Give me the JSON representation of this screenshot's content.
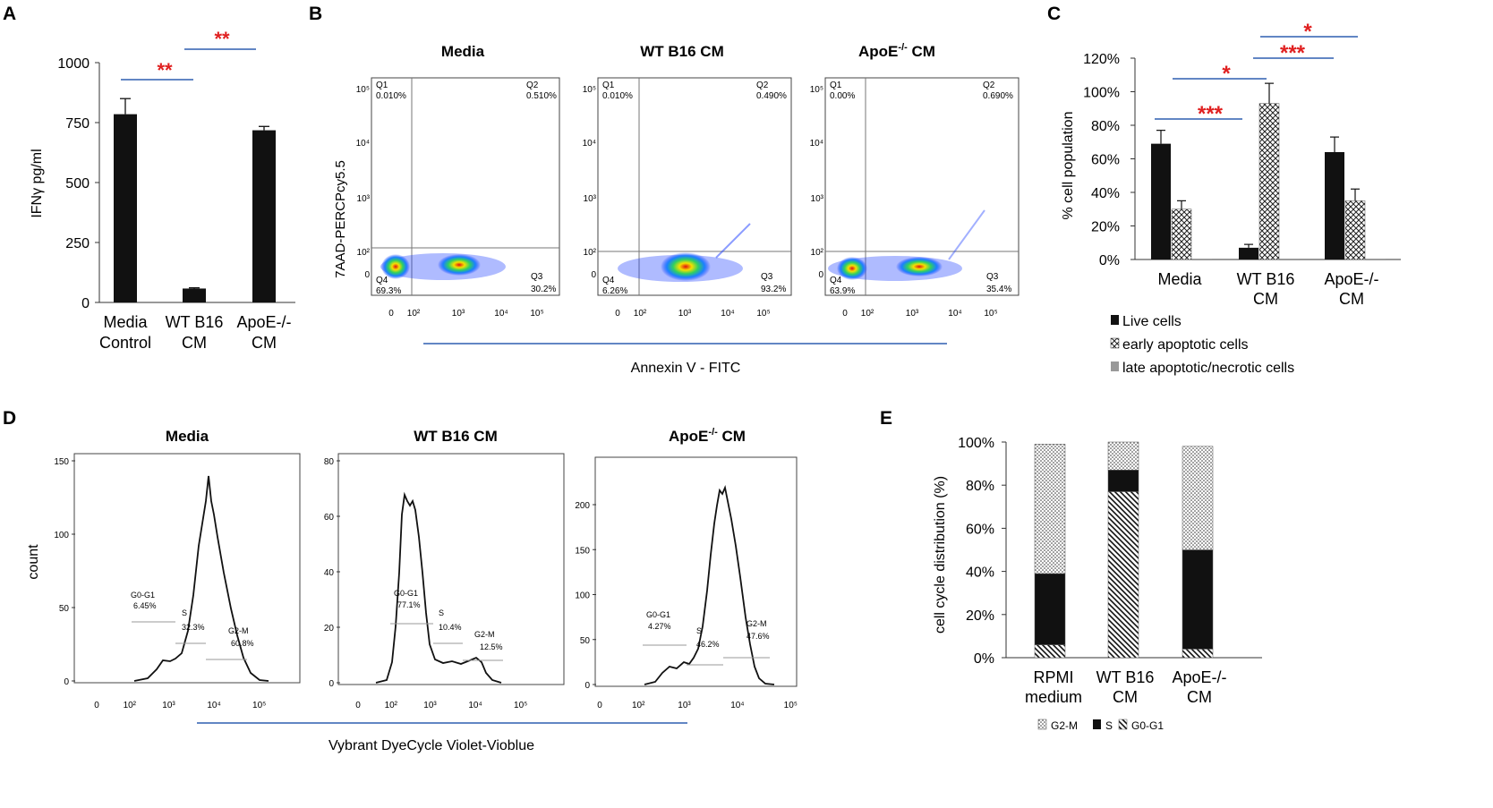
{
  "panels": {
    "A": {
      "label": "A",
      "ylabel": "IFNγ pg/ml",
      "yticks": [
        0,
        250,
        500,
        750,
        1000
      ],
      "ylim": [
        0,
        1000
      ],
      "categories": [
        {
          "line1": "Media",
          "line2": "Control"
        },
        {
          "line1": "WT B16",
          "line2": "CM"
        },
        {
          "line1": "ApoE-/-",
          "line2": "CM"
        }
      ],
      "sig": [
        "**",
        "**"
      ]
    },
    "B": {
      "label": "B",
      "ylabel": "7AAD-PERCPcy5.5",
      "xlabel": "Annexin V - FITC",
      "plots": [
        {
          "title": "Media",
          "q1": "Q1",
          "q1v": "0.010%",
          "q2": "Q2",
          "q2v": "0.510%",
          "q3": "Q3",
          "q3v": "30.2%",
          "q4": "Q4",
          "q4v": "69.3%"
        },
        {
          "title": "WT B16 CM",
          "q1": "Q1",
          "q1v": "0.010%",
          "q2": "Q2",
          "q2v": "0.490%",
          "q3": "Q3",
          "q3v": "93.2%",
          "q4": "Q4",
          "q4v": "6.26%"
        },
        {
          "title_main": "ApoE",
          "title_sup": "-/-",
          "title_rest": " CM",
          "q1": "Q1",
          "q1v": "0.00%",
          "q2": "Q2",
          "q2v": "0.690%",
          "q3": "Q3",
          "q3v": "35.4%",
          "q4": "Q4",
          "q4v": "63.9%"
        }
      ],
      "yticks": [
        "10⁵",
        "10⁴",
        "10³",
        "10²",
        "0"
      ],
      "xticks": [
        "0",
        "10²",
        "10³",
        "10⁴",
        "10⁵"
      ]
    },
    "C": {
      "label": "C",
      "ylabel": "% cell population",
      "yticks": [
        "0%",
        "20%",
        "40%",
        "60%",
        "80%",
        "100%",
        "120%"
      ],
      "categories": [
        {
          "line1": "Media",
          "line2": ""
        },
        {
          "line1": "WT B16",
          "line2": "CM"
        },
        {
          "line1": "ApoE-/-",
          "line2": "CM"
        }
      ],
      "legend": [
        "Live cells",
        "early apoptotic cells",
        "late apoptotic/necrotic cells"
      ],
      "sig": [
        "***",
        "*",
        "***",
        "*"
      ]
    },
    "D": {
      "label": "D",
      "ylabel": "count",
      "xlabel": "Vybrant DyeCycle Violet-Vioblue",
      "plots": [
        {
          "title": "Media",
          "g01": "G0-G1",
          "g01v": "6.45%",
          "s": "S",
          "sv": "32.3%",
          "g2m": "G2-M",
          "g2mv": "60.8%",
          "yticks": [
            "150",
            "100",
            "50",
            "0"
          ]
        },
        {
          "title": "WT B16 CM",
          "g01": "G0-G1",
          "g01v": "77.1%",
          "s": "S",
          "sv": "10.4%",
          "g2m": "G2-M",
          "g2mv": "12.5%",
          "yticks": [
            "80",
            "60",
            "40",
            "20",
            "0"
          ]
        },
        {
          "title_main": "ApoE",
          "title_sup": "-/-",
          "title_rest": " CM",
          "g01": "G0-G1",
          "g01v": "4.27%",
          "s": "S",
          "sv": "46.2%",
          "g2m": "G2-M",
          "g2mv": "47.6%",
          "yticks": [
            "200",
            "150",
            "100",
            "50",
            "0"
          ]
        }
      ],
      "xticks": [
        "0",
        "10²",
        "10³",
        "10⁴",
        "10⁵"
      ]
    },
    "E": {
      "label": "E",
      "ylabel": "cell cycle distribution  (%)",
      "yticks": [
        "0%",
        "20%",
        "40%",
        "60%",
        "80%",
        "100%"
      ],
      "categories": [
        {
          "line1": "RPMI",
          "line2": "medium"
        },
        {
          "line1": "WT B16",
          "line2": "CM"
        },
        {
          "line1": "ApoE-/-",
          "line2": "CM"
        }
      ],
      "legend": [
        "G2-M",
        "S",
        "G0-G1"
      ]
    }
  },
  "chart_data": [
    {
      "type": "bar",
      "title": "A",
      "ylabel": "IFNγ pg/ml",
      "categories": [
        "Media Control",
        "WT B16 CM",
        "ApoE-/- CM"
      ],
      "values": [
        785,
        58,
        718
      ],
      "errors": [
        65,
        3,
        16
      ],
      "ylim": [
        0,
        1000
      ]
    },
    {
      "type": "bar",
      "title": "C",
      "ylabel": "% cell population",
      "categories": [
        "Media",
        "WT B16 CM",
        "ApoE-/- CM"
      ],
      "series": [
        {
          "name": "Live cells",
          "values": [
            69,
            7,
            64
          ],
          "errors": [
            8,
            2,
            9
          ]
        },
        {
          "name": "early apoptotic cells",
          "values": [
            30,
            93,
            35
          ],
          "errors": [
            5,
            12,
            7
          ]
        },
        {
          "name": "late apoptotic/necrotic cells",
          "values": [
            0.5,
            0.5,
            0.5
          ],
          "errors": [
            0,
            0,
            0
          ]
        }
      ],
      "ylim": [
        0,
        120
      ]
    },
    {
      "type": "bar",
      "title": "E",
      "ylabel": "cell cycle distribution  (%)",
      "stacked": true,
      "categories": [
        "RPMI medium",
        "WT B16 CM",
        "ApoE-/- CM"
      ],
      "series": [
        {
          "name": "G0-G1",
          "values": [
            6,
            77,
            4
          ]
        },
        {
          "name": "S",
          "values": [
            33,
            10,
            46
          ]
        },
        {
          "name": "G2-M",
          "values": [
            60,
            13,
            48
          ]
        }
      ],
      "ylim": [
        0,
        100
      ]
    }
  ]
}
